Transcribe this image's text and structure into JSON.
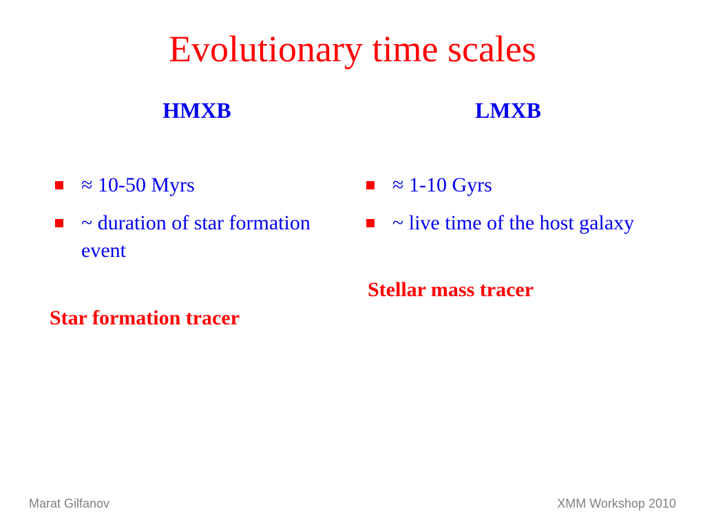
{
  "title": "Evolutionary time scales",
  "colors": {
    "title": "#ff0000",
    "body": "#0000ee",
    "bullet_marker": "#ff0000",
    "tracer": "#ff0000",
    "footer": "#808080",
    "background": "#ffffff"
  },
  "typography": {
    "title_fontsize": 54,
    "heading_fontsize": 32,
    "body_fontsize": 30,
    "footer_fontsize": 18,
    "family": "Comic Sans MS"
  },
  "columns": {
    "left": {
      "heading": "HMXB",
      "bullets": [
        "≈ 10-50 Myrs",
        "~ duration of star formation event"
      ],
      "tracer": "Star formation tracer"
    },
    "right": {
      "heading": "LMXB",
      "bullets": [
        "≈ 1-10 Gyrs",
        "~ live time of the host galaxy"
      ],
      "tracer": "Stellar mass tracer"
    }
  },
  "footer": {
    "left": "Marat Gilfanov",
    "right": "XMM Workshop 2010"
  }
}
